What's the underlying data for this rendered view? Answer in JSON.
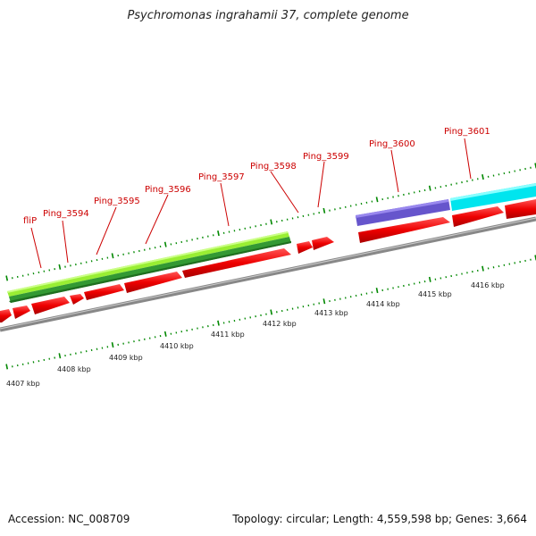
{
  "title": "Psychromonas ingrahamii 37, complete genome",
  "footer": {
    "accession": "Accession: NC_008709",
    "summary": "Topology: circular; Length: 4,559,598 bp; Genes: 3,664"
  },
  "gene_labels": [
    "fliP",
    "Ping_3594",
    "Ping_3595",
    "Ping_3596",
    "Ping_3597",
    "Ping_3598",
    "Ping_3599",
    "Ping_3600",
    "Ping_3601"
  ],
  "scale_labels": [
    "4407 kbp",
    "4408 kbp",
    "4409 kbp",
    "4410 kbp",
    "4411 kbp",
    "4412 kbp",
    "4413 kbp",
    "4414 kbp",
    "4415 kbp",
    "4416 kbp"
  ],
  "colors": {
    "cds_red": "#ee0000",
    "light_green": "#99ee33",
    "dark_green": "#339933",
    "purple": "#6655cc",
    "cyan": "#00e5ee",
    "backbone": "#888888",
    "tick_green": "#008800",
    "label_red": "#cc0000"
  }
}
